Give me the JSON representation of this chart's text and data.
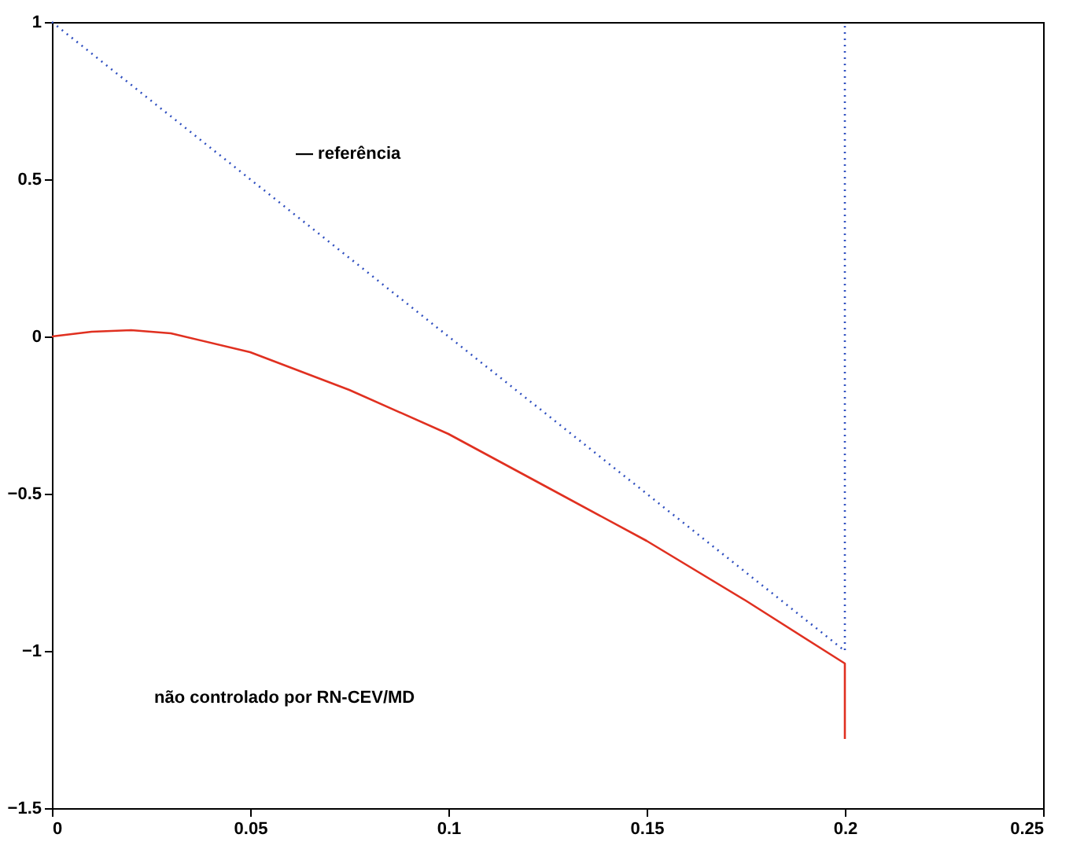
{
  "chart_data": {
    "type": "line",
    "xlim": [
      0,
      0.25
    ],
    "ylim": [
      -1.5,
      1
    ],
    "xticks": [
      0,
      0.05,
      0.1,
      0.15,
      0.2,
      0.25
    ],
    "yticks": [
      -1.5,
      -1,
      -0.5,
      0,
      0.5,
      1
    ],
    "grid": false,
    "marker": "none",
    "annotations": [
      "— referência",
      "não controlado por RN-CEV/MD"
    ],
    "series": [
      {
        "color": "#3050c0",
        "line_style": "dotted",
        "x": [
          0,
          0.2,
          0.2
        ],
        "values": [
          1,
          -1,
          1
        ]
      },
      {
        "color": "#e03020",
        "line_style": "solid",
        "x": [
          0,
          0.01,
          0.02,
          0.03,
          0.05,
          0.075,
          0.1,
          0.125,
          0.15,
          0.175,
          0.2,
          0.2
        ],
        "values": [
          0,
          0.015,
          0.02,
          0.01,
          -0.05,
          -0.17,
          -0.31,
          -0.48,
          -0.65,
          -0.84,
          -1.04,
          -1.28
        ]
      }
    ]
  }
}
